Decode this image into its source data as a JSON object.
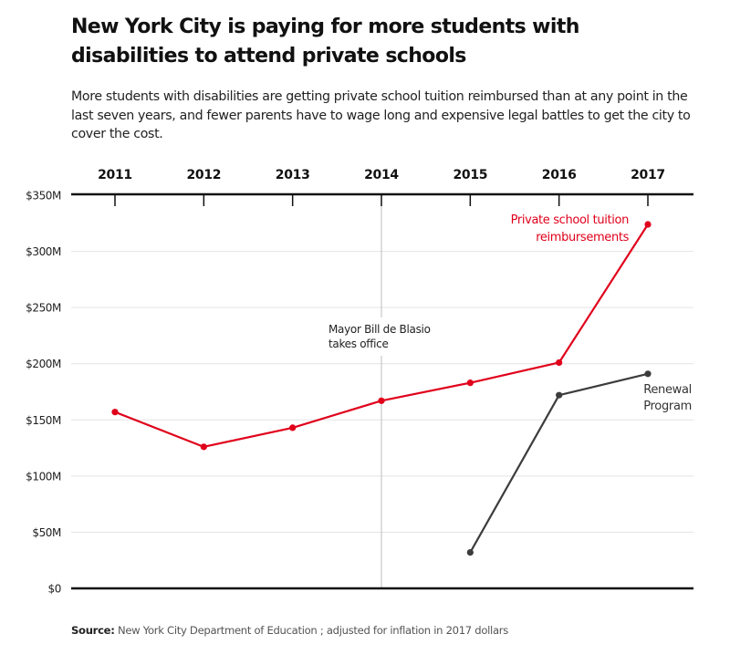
{
  "chart_data": {
    "type": "line",
    "title": "New York City is paying for more students with disabilities to attend private schools",
    "subtitle": "More students with disabilities are getting private school tuition reimbursed than at any point in the last seven years, and fewer parents have to wage long and expensive legal battles to get the city to cover the cost.",
    "x": [
      2011,
      2012,
      2013,
      2014,
      2015,
      2016,
      2017
    ],
    "x_tick_labels": [
      "2011",
      "2012",
      "2013",
      "2014",
      "2015",
      "2016",
      "2017"
    ],
    "ylim": [
      0,
      350
    ],
    "y_ticks": [
      0,
      50,
      100,
      150,
      200,
      250,
      300,
      350
    ],
    "y_tick_labels": [
      "$0",
      "$50M",
      "$100M",
      "$150M",
      "$200M",
      "$250M",
      "$300M",
      "$350M"
    ],
    "ylabel": "",
    "xlabel": "",
    "grid": true,
    "series": [
      {
        "name": "Private school tuition reimbursements",
        "label_lines": [
          "Private school tuition",
          "reimbursements"
        ],
        "color": "#e0001b",
        "values": [
          157,
          126,
          143,
          167,
          183,
          201,
          324
        ]
      },
      {
        "name": "Renewal Program",
        "label_lines": [
          "Renewal",
          "Program"
        ],
        "color": "#3d3b3d",
        "values": [
          null,
          null,
          null,
          null,
          32,
          172,
          191
        ]
      }
    ],
    "annotations": [
      {
        "x": 2014,
        "lines": [
          "Mayor Bill de Blasio",
          "takes office"
        ]
      }
    ]
  },
  "source": {
    "label": "Source:",
    "text": "New York City Department of Education ; adjusted for inflation in 2017 dollars"
  }
}
